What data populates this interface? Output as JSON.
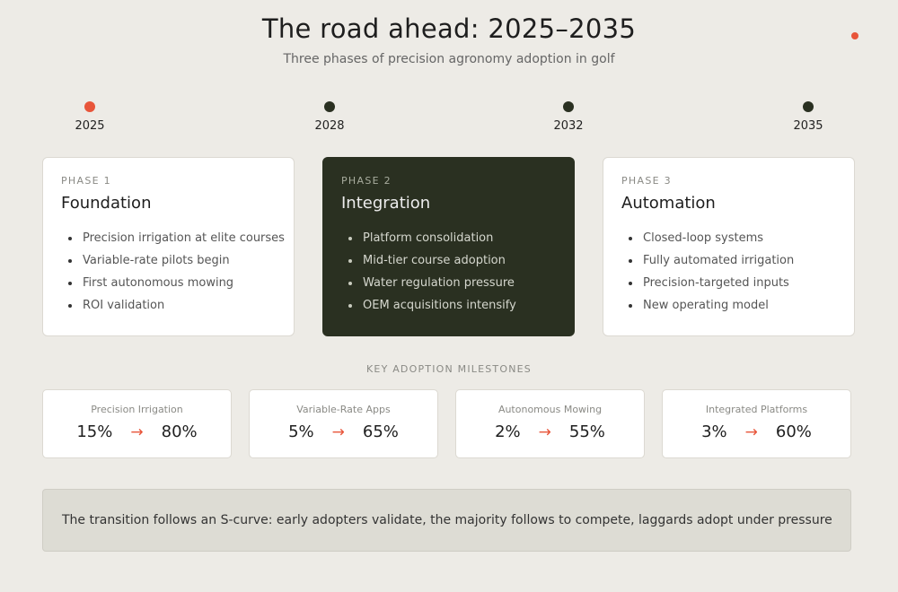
{
  "header": {
    "title": "The road ahead: 2025–2035",
    "subtitle": "Three phases of precision agronomy adoption in golf"
  },
  "colors": {
    "accent": "#e8553a",
    "dark": "#2a3021",
    "background": "#edebe6"
  },
  "timeline": [
    {
      "year": "2025",
      "active": true
    },
    {
      "year": "2028",
      "active": false
    },
    {
      "year": "2032",
      "active": false
    },
    {
      "year": "2035",
      "active": false
    }
  ],
  "phases": [
    {
      "label": "PHASE 1",
      "name": "Foundation",
      "items": [
        "Precision irrigation at elite courses",
        "Variable-rate pilots begin",
        "First autonomous mowing",
        "ROI validation"
      ]
    },
    {
      "label": "PHASE 2",
      "name": "Integration",
      "highlighted": true,
      "items": [
        "Platform consolidation",
        "Mid-tier course adoption",
        "Water regulation pressure",
        "OEM acquisitions intensify"
      ]
    },
    {
      "label": "PHASE 3",
      "name": "Automation",
      "items": [
        "Closed-loop systems",
        "Fully automated irrigation",
        "Precision-targeted inputs",
        "New operating model"
      ]
    }
  ],
  "milestones": {
    "heading": "KEY ADOPTION MILESTONES",
    "arrow_icon": "right-arrow-icon",
    "items": [
      {
        "label": "Precision Irrigation",
        "from": "15%",
        "to": "80%",
        "arrow": "→"
      },
      {
        "label": "Variable-Rate Apps",
        "from": "5%",
        "to": "65%",
        "arrow": "→"
      },
      {
        "label": "Autonomous Mowing",
        "from": "2%",
        "to": "55%",
        "arrow": "→"
      },
      {
        "label": "Integrated Platforms",
        "from": "3%",
        "to": "60%",
        "arrow": "→"
      }
    ]
  },
  "footer": {
    "text": "The transition follows an S-curve: early adopters validate, the majority follows to compete, laggards adopt under pressure"
  }
}
